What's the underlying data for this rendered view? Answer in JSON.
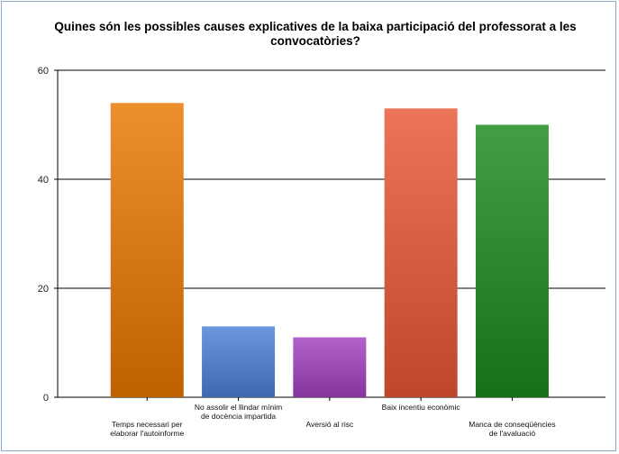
{
  "chart_data": {
    "type": "bar",
    "title": "Quines són les possibles causes explicatives de la baixa participació del professorat a les convocatòries?",
    "categories": [
      "Temps necessari per elaborar l'autoinforme",
      "No assolir el llindar mínim de docència impartida",
      "Aversió al risc",
      "Baix incentiu econòmic",
      "Manca de conseqüències de l'avaluació"
    ],
    "values": [
      54,
      13,
      11,
      53,
      50
    ],
    "yticks": [
      0,
      20,
      40,
      60
    ],
    "ylim": [
      0,
      60
    ],
    "grid": true,
    "legend": "none",
    "colors": [
      "#e87800",
      "#4a80d8",
      "#a040c0",
      "#e85535",
      "#1a8a1a"
    ]
  }
}
